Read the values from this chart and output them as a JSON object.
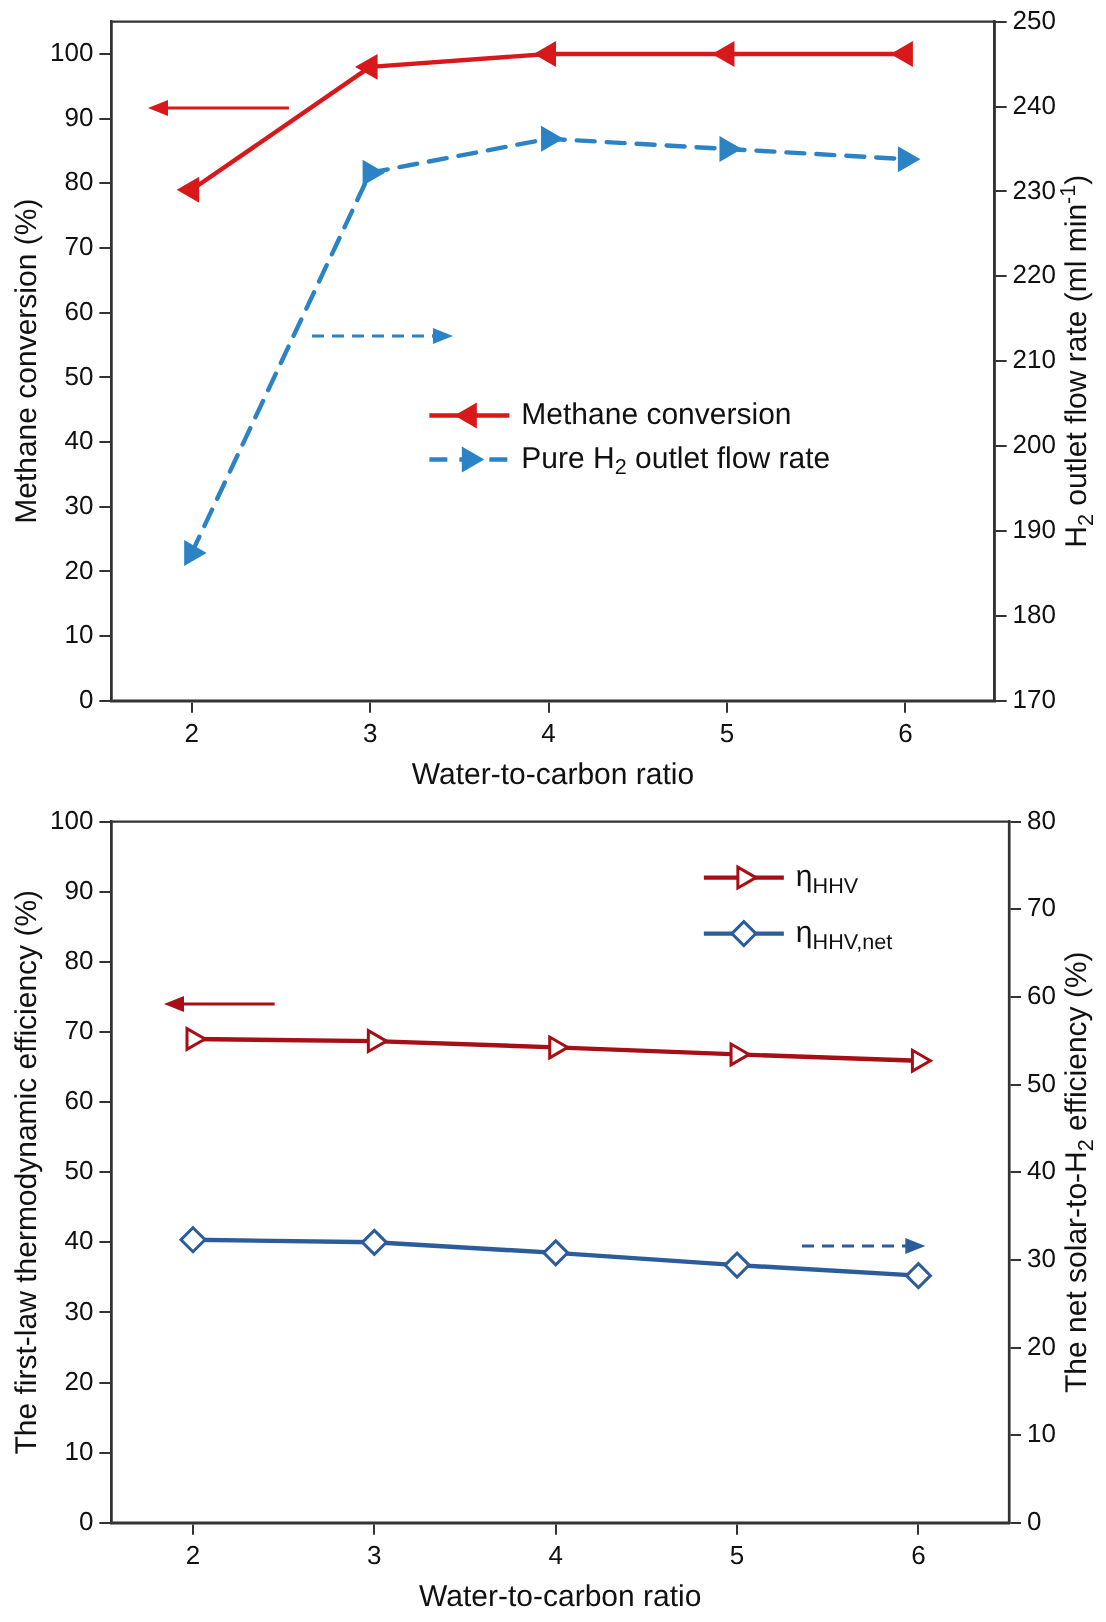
{
  "chart_data": [
    {
      "type": "line",
      "x": [
        2,
        3,
        4,
        5,
        6
      ],
      "xlim": [
        1.55,
        6.5
      ],
      "xticks": [
        2,
        3,
        4,
        5,
        6
      ],
      "xlabel": "Water-to-carbon ratio",
      "ylabel": "Methane conversion (%)",
      "y2label": "H$_{2}$ outlet flow rate (ml min$^{-1}$)",
      "ylim": [
        0,
        105
      ],
      "yticks": [
        0,
        10,
        20,
        30,
        40,
        50,
        60,
        70,
        80,
        90,
        100
      ],
      "y2lim": [
        170,
        250
      ],
      "y2ticks": [
        170,
        180,
        190,
        200,
        210,
        220,
        230,
        240,
        250
      ],
      "grid": false,
      "legend": "center right",
      "series": [
        {
          "name": "Methane conversion",
          "color": "#d7191c",
          "values": [
            79,
            98,
            100,
            100,
            100
          ],
          "marker": "triangle",
          "line_style": "solid"
        },
        {
          "name": "Pure H$_{2}$ outlet flow rate",
          "color": "#2b83c6",
          "values": [
            187.4,
            232.2,
            236.2,
            235,
            233.8
          ],
          "axis": "y2",
          "marker": "triangle",
          "line_style": "dashed"
        }
      ]
    },
    {
      "type": "line",
      "x": [
        2,
        3,
        4,
        5,
        6
      ],
      "xlim": [
        1.55,
        6.5
      ],
      "xticks": [
        2,
        3,
        4,
        5,
        6
      ],
      "xlabel": "Water-to-carbon ratio",
      "ylabel": "The first-law thermodynamic efficiency (%)",
      "y2label": "The net solar-to-H$_{2}$ efficiency (%)",
      "ylim": [
        0,
        100
      ],
      "yticks": [
        0,
        10,
        20,
        30,
        40,
        50,
        60,
        70,
        80,
        90,
        100
      ],
      "y2lim": [
        0,
        80
      ],
      "y2ticks": [
        0,
        10,
        20,
        30,
        40,
        50,
        60,
        70,
        80
      ],
      "grid": false,
      "legend": "top right",
      "series": [
        {
          "name": "η$_{HHV}$",
          "color": "#a50f15",
          "values": [
            69,
            68.7,
            67.8,
            66.8,
            65.9
          ],
          "marker": "triangle",
          "line_style": "solid"
        },
        {
          "name": "η$_{HHV,net}$",
          "color": "#2c5c9a",
          "values": [
            32.3,
            32,
            30.8,
            29.4,
            28.2
          ],
          "axis": "y2",
          "marker": "diamond",
          "line_style": "solid"
        }
      ]
    }
  ]
}
